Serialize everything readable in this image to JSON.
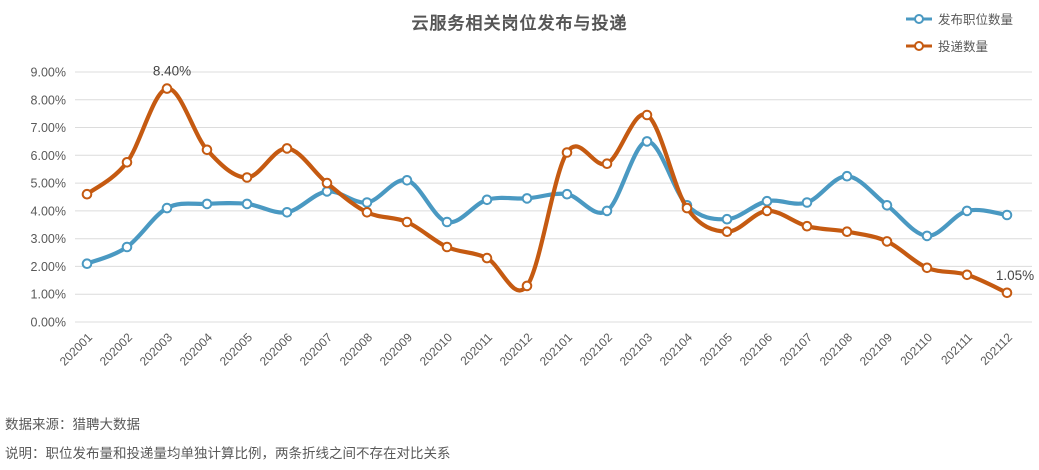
{
  "title": "云服务相关岗位发布与投递",
  "legend": [
    {
      "label": "发布职位数量",
      "color": "#4A99C2"
    },
    {
      "label": "投递数量",
      "color": "#C55A11"
    }
  ],
  "footer": {
    "source": "数据来源：猎聘大数据",
    "note": "说明：职位发布量和投递量均单独计算比例，两条折线之间不存在对比关系"
  },
  "colors": {
    "series_publish": "#4A99C2",
    "series_apply": "#C55A11",
    "gridline": "#DCDCDC",
    "axis_text": "#595959",
    "annotation_text": "#444444",
    "title_text": "#565656",
    "background": "#FFFFFF"
  },
  "chart_data": {
    "type": "line",
    "title": "云服务相关岗位发布与投递",
    "categories": [
      "202001",
      "202002",
      "202003",
      "202004",
      "202005",
      "202006",
      "202007",
      "202008",
      "202009",
      "202010",
      "202011",
      "202012",
      "202101",
      "202102",
      "202103",
      "202104",
      "202105",
      "202106",
      "202107",
      "202108",
      "202109",
      "202110",
      "202111",
      "202112"
    ],
    "series": [
      {
        "name": "发布职位数量",
        "color": "#4A99C2",
        "values": [
          2.1,
          2.7,
          4.1,
          4.25,
          4.25,
          3.95,
          4.7,
          4.3,
          5.1,
          3.6,
          4.4,
          4.45,
          4.6,
          4.0,
          6.5,
          4.2,
          3.7,
          4.35,
          4.3,
          5.25,
          4.2,
          3.1,
          4.0,
          3.85
        ]
      },
      {
        "name": "投递数量",
        "color": "#C55A11",
        "values": [
          4.6,
          5.75,
          8.4,
          6.2,
          5.2,
          6.25,
          5.0,
          3.95,
          3.6,
          2.7,
          2.3,
          1.3,
          6.1,
          5.7,
          7.45,
          4.1,
          3.25,
          4.0,
          3.45,
          3.25,
          2.9,
          1.95,
          1.7,
          1.05
        ]
      }
    ],
    "ylim": [
      0,
      9
    ],
    "ytick_step": 1,
    "ytick_labels": [
      "0.00%",
      "1.00%",
      "2.00%",
      "3.00%",
      "4.00%",
      "5.00%",
      "6.00%",
      "7.00%",
      "8.00%",
      "9.00%"
    ],
    "grid": true,
    "legend_position": "top-right",
    "smooth": true,
    "annotations": [
      {
        "series_index": 1,
        "point_index": 2,
        "text": "8.40%"
      },
      {
        "series_index": 1,
        "point_index": 23,
        "text": "1.05%"
      }
    ]
  }
}
